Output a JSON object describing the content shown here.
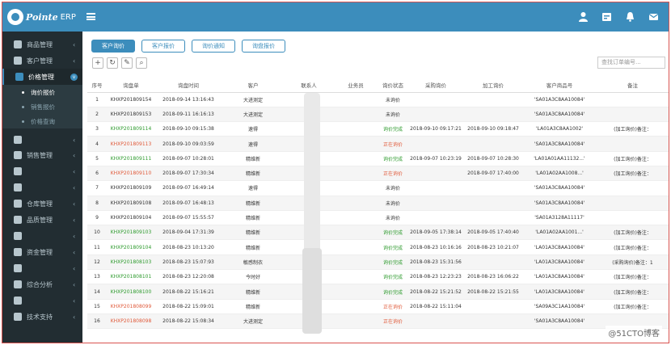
{
  "app": {
    "brand": "Pointe",
    "suffix": "ERP"
  },
  "header_icons": [
    "user-icon",
    "calendar-icon",
    "bell-icon",
    "mail-icon"
  ],
  "sidebar": {
    "items": [
      {
        "label": "商品管理",
        "icon": "cube-icon"
      },
      {
        "label": "客户管理",
        "icon": "user-icon"
      },
      {
        "label": "价格管理",
        "icon": "price-icon",
        "active": true
      },
      {
        "label": "",
        "icon": "box-icon"
      },
      {
        "label": "销售管理",
        "icon": "chart-icon"
      },
      {
        "label": "",
        "icon": "cart-icon"
      },
      {
        "label": "",
        "icon": "recycle-icon"
      },
      {
        "label": "仓库管理",
        "icon": "warehouse-icon"
      },
      {
        "label": "品质管理",
        "icon": "diamond-icon"
      },
      {
        "label": "",
        "icon": "bag-icon"
      },
      {
        "label": "资金管理",
        "icon": "money-icon"
      },
      {
        "label": "",
        "icon": "graph-icon"
      },
      {
        "label": "综合分析",
        "icon": "globe-icon"
      },
      {
        "label": "",
        "icon": "building-icon"
      },
      {
        "label": "技术支持",
        "icon": "wrench-icon"
      }
    ],
    "subitems": [
      "询价报价",
      "销售报价",
      "价格查询"
    ]
  },
  "tabs": [
    "客户询价",
    "客户报价",
    "询价通知",
    "询盘报价"
  ],
  "search": {
    "placeholder": "查找订单编号..."
  },
  "table": {
    "headers": [
      "序号",
      "询盘单",
      "询盘时间",
      "客户",
      "联系人",
      "业务员",
      "询价状态",
      "采购询价",
      "加工询价",
      "客户商品号",
      "备注"
    ],
    "rows": [
      [
        "1",
        "KHXP201809154",
        "2018-09-14 13:16:43",
        "大进测定",
        "",
        "",
        "未询价",
        "",
        "",
        "'SA01A3C8AA10084'",
        ""
      ],
      [
        "2",
        "KHXP201809153",
        "2018-09-11 16:16:13",
        "大进测定",
        "",
        "",
        "未询价",
        "",
        "",
        "'SA01A3C8AA10084'",
        ""
      ],
      [
        "3",
        "KHXP201809114",
        "2018-09-10 09:15:38",
        "速得",
        "",
        "",
        "询价完成",
        "2018-09-10 09:17:21",
        "2018-09-10 09:18:47",
        "'LA01A3C8AA1002'",
        "(加工询价)备注："
      ],
      [
        "4",
        "KHXP201809113",
        "2018-09-10 09:03:59",
        "速得",
        "",
        "",
        "正在询价",
        "",
        "",
        "'SA01A3C8AA10084'",
        ""
      ],
      [
        "5",
        "KHXP201809111",
        "2018-09-07 10:28:01",
        "精维新",
        "",
        "",
        "询价完成",
        "2018-09-07 10:23:19",
        "2018-09-07 10:28:30",
        "'LA01A01AA11132...'",
        "(加工询价)备注："
      ],
      [
        "6",
        "KHXP201809110",
        "2018-09-07 17:30:34",
        "精维新",
        "",
        "",
        "正在询价",
        "",
        "2018-09-07 17:40:00",
        "'LA01A02AA1008...'",
        "(加工询价)备注："
      ],
      [
        "7",
        "KHXP201809109",
        "2018-09-07 16:49:14",
        "速得",
        "",
        "",
        "未询价",
        "",
        "",
        "'SA01A3C8AA10084'",
        ""
      ],
      [
        "8",
        "KHXP201809108",
        "2018-09-07 16:48:13",
        "精维新",
        "",
        "",
        "未询价",
        "",
        "",
        "'SA01A3C8AA10084'",
        ""
      ],
      [
        "9",
        "KHXP201809104",
        "2018-09-07 15:55:57",
        "精维新",
        "",
        "",
        "未询价",
        "",
        "",
        "'SA01A3128A11117'",
        ""
      ],
      [
        "10",
        "KHXP201809103",
        "2018-09-04 17:31:39",
        "精维新",
        "",
        "",
        "询价完成",
        "2018-09-05 17:38:14",
        "2018-09-05 17:40:40",
        "'LA01A02AA1001...'",
        "(加工询价)备注："
      ],
      [
        "11",
        "KHXP201809104",
        "2018-08-23 10:13:20",
        "精维新",
        "",
        "",
        "询价完成",
        "2018-08-23 10:16:16",
        "2018-08-23 10:21:07",
        "'LA01A3C8AA10084'",
        "(加工询价)备注："
      ],
      [
        "12",
        "KHXP201808103",
        "2018-08-23 15:07:93",
        "敏感制衣",
        "",
        "",
        "询价完成",
        "2018-08-23 15:31:56",
        "",
        "'LA01A3C8AA10084'",
        "(采购询价)备注：1"
      ],
      [
        "13",
        "KHXP201808101",
        "2018-08-23 12:20:08",
        "今时好",
        "",
        "",
        "询价完成",
        "2018-08-23 12:23:23",
        "2018-08-23 16:06:22",
        "'LA01A3C8AA10084'",
        "(加工询价)备注："
      ],
      [
        "14",
        "KHXP201808100",
        "2018-08-22 15:16:21",
        "精维新",
        "",
        "",
        "询价完成",
        "2018-08-22 15:21:52",
        "2018-08-22 15:21:55",
        "'LA01A3C8AA10084'",
        "(加工询价)备注："
      ],
      [
        "15",
        "KHXP201808099",
        "2018-08-22 15:09:01",
        "精维新",
        "",
        "",
        "正在询价",
        "2018-08-22 15:11:04",
        "",
        "'SA09A3C1AA10084'",
        "(加工询价)备注："
      ],
      [
        "16",
        "KHXP201808098",
        "2018-08-22 15:08:34",
        "大进测定",
        "",
        "",
        "正在询价",
        "",
        "",
        "'SA01A3C8AA10084'",
        ""
      ]
    ]
  },
  "watermark": "@51CTO博客",
  "colors": {
    "header": "#3c8dbc",
    "sidebar": "#222d32",
    "done": "#2e9b2e",
    "inProgress": "#e05a3a"
  }
}
